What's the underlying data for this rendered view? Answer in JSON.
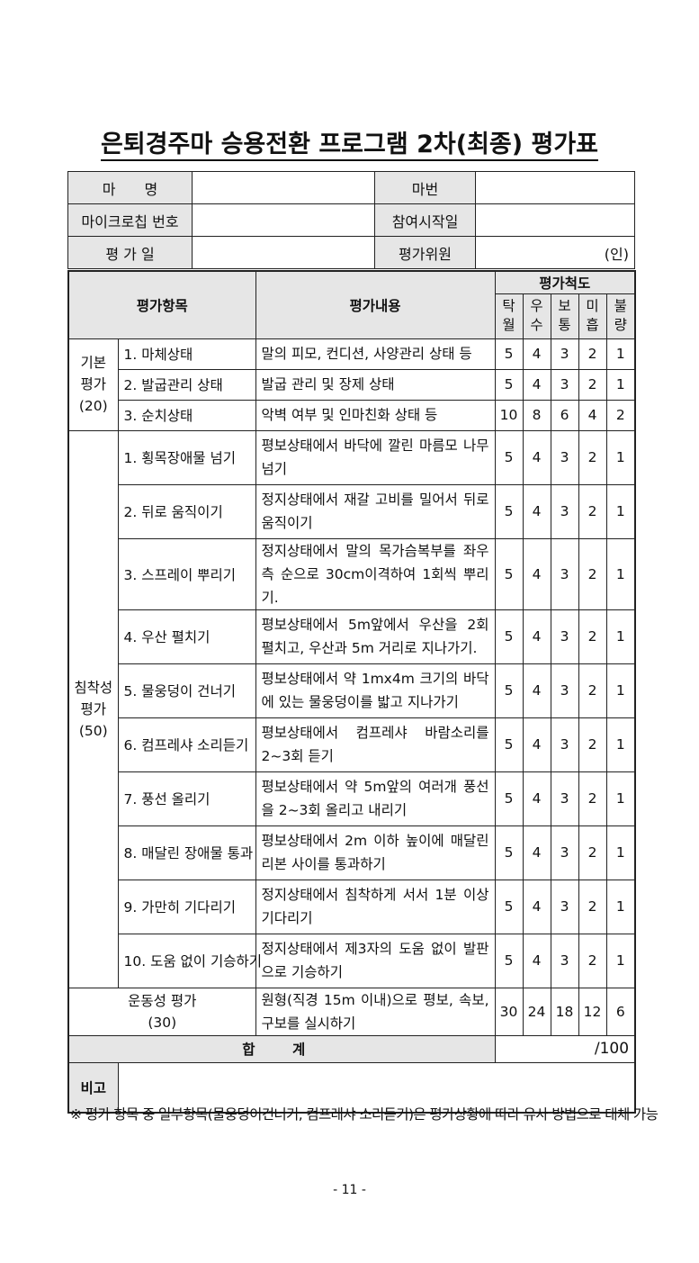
{
  "title": "은퇴경주마 승용전환 프로그램 2차(최종) 평가표",
  "info": {
    "horse_name_label": "마　　명",
    "horse_number_label": "마번",
    "microchip_label": "마이크로칩 번호",
    "start_date_label": "참여시작일",
    "eval_date_label": "평 가 일",
    "evaluator_label": "평가위원",
    "seal_text": "(인)"
  },
  "header": {
    "item": "평가항목",
    "content": "평가내용",
    "scale": "평가척도",
    "grades": [
      "탁\n월",
      "우\n수",
      "보\n통",
      "미\n흡",
      "불\n량"
    ]
  },
  "groups": [
    {
      "label": "기본\n평가\n(20)",
      "rows": [
        {
          "item": "1. 마체상태",
          "content": "말의 피모, 컨디션, 사양관리 상태 등",
          "scores": [
            "5",
            "4",
            "3",
            "2",
            "1"
          ]
        },
        {
          "item": "2. 발굽관리 상태",
          "content": "발굽 관리 및 장제 상태",
          "scores": [
            "5",
            "4",
            "3",
            "2",
            "1"
          ]
        },
        {
          "item": "3. 순치상태",
          "content": "악벽 여부 및 인마친화 상태 등",
          "scores": [
            "10",
            "8",
            "6",
            "4",
            "2"
          ]
        }
      ]
    },
    {
      "label": "침착성\n평가\n(50)",
      "rows": [
        {
          "item": "1. 횡목장애물 넘기",
          "content": "평보상태에서 바닥에 깔린 마름모 나무 넘기",
          "scores": [
            "5",
            "4",
            "3",
            "2",
            "1"
          ]
        },
        {
          "item": "2. 뒤로 움직이기",
          "content": "정지상태에서 재갈 고비를 밀어서 뒤로 움직이기",
          "scores": [
            "5",
            "4",
            "3",
            "2",
            "1"
          ]
        },
        {
          "item": "3. 스프레이 뿌리기",
          "content": "정지상태에서 말의 목가슴복부를 좌우측 순으로 30cm이격하여 1회씩 뿌리기.",
          "scores": [
            "5",
            "4",
            "3",
            "2",
            "1"
          ]
        },
        {
          "item": "4. 우산 펼치기",
          "content": "평보상태에서 5m앞에서 우산을 2회 펼치고, 우산과 5m 거리로 지나가기.",
          "scores": [
            "5",
            "4",
            "3",
            "2",
            "1"
          ]
        },
        {
          "item": "5. 물웅덩이 건너기",
          "content": "평보상태에서 약 1mx4m 크기의 바닥에 있는 물웅덩이를 밟고 지나가기",
          "scores": [
            "5",
            "4",
            "3",
            "2",
            "1"
          ]
        },
        {
          "item": "6. 컴프레샤 소리듣기",
          "content": "평보상태에서 컴프레샤 바람소리를 2~3회 듣기",
          "scores": [
            "5",
            "4",
            "3",
            "2",
            "1"
          ]
        },
        {
          "item": "7. 풍선 올리기",
          "content": "평보상태에서 약 5m앞의 여러개 풍선을 2~3회 올리고 내리기",
          "scores": [
            "5",
            "4",
            "3",
            "2",
            "1"
          ]
        },
        {
          "item": "8. 매달린 장애물 통과",
          "content": "평보상태에서 2m 이하 높이에 매달린 리본 사이를 통과하기",
          "scores": [
            "5",
            "4",
            "3",
            "2",
            "1"
          ]
        },
        {
          "item": "9. 가만히 기다리기",
          "content": "정지상태에서 침착하게 서서 1분 이상 기다리기",
          "scores": [
            "5",
            "4",
            "3",
            "2",
            "1"
          ]
        },
        {
          "item": "10. 도움 없이 기승하기",
          "content": "정지상태에서 제3자의 도움 없이 발판으로 기승하기",
          "scores": [
            "5",
            "4",
            "3",
            "2",
            "1"
          ]
        }
      ]
    }
  ],
  "motor": {
    "label": "운동성 평가\n(30)",
    "content": "원형(직경 15m 이내)으로 평보, 속보, 구보를 실시하기",
    "scores": [
      "30",
      "24",
      "18",
      "12",
      "6"
    ]
  },
  "total": {
    "label": "합 계",
    "value": "/100"
  },
  "remarks": {
    "label": "비고",
    "value": ""
  },
  "footnote": "※ 평가 항목 중 일부항목(물웅덩이건너기, 컴프레샤 소리듣기)은 평가상황에 따라 유사 방법으로 대체 가능",
  "page_number": "- 11 -"
}
